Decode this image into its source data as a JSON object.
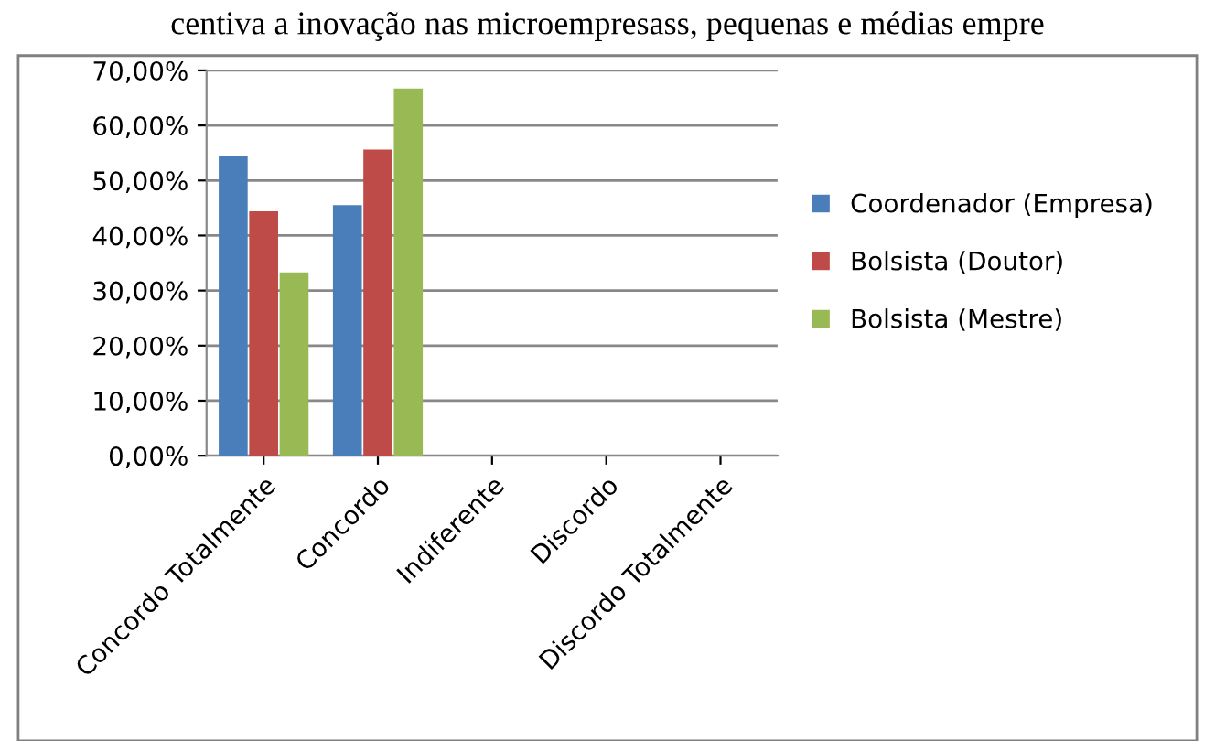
{
  "chart_data": {
    "type": "bar",
    "title": "centiva a inovação nas microempresass, pequenas e médias empre",
    "categories": [
      "Concordo Totalmente",
      "Concordo",
      "Indiferente",
      "Discordo",
      "Discordo Totalmente"
    ],
    "series": [
      {
        "name": "Coordenador (Empresa)",
        "color": "#4a7ebb",
        "values": [
          54.5,
          45.5,
          0,
          0,
          0
        ]
      },
      {
        "name": "Bolsista (Doutor)",
        "color": "#be4b48",
        "values": [
          44.4,
          55.6,
          0,
          0,
          0
        ]
      },
      {
        "name": "Bolsista (Mestre)",
        "color": "#98b954",
        "values": [
          33.3,
          66.7,
          0,
          0,
          0
        ]
      }
    ],
    "ylim": [
      0,
      70
    ],
    "yticks": [
      {
        "value": 0,
        "label": "0,00%"
      },
      {
        "value": 10,
        "label": "10,00%"
      },
      {
        "value": 20,
        "label": "20,00%"
      },
      {
        "value": 30,
        "label": "30,00%"
      },
      {
        "value": 40,
        "label": "40,00%"
      },
      {
        "value": 50,
        "label": "50,00%"
      },
      {
        "value": 60,
        "label": "60,00%"
      },
      {
        "value": 70,
        "label": "70,00%"
      }
    ],
    "grid": "y",
    "legend": "right"
  }
}
